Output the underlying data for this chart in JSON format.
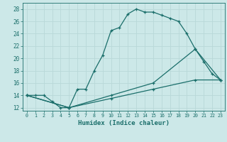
{
  "xlabel": "Humidex (Indice chaleur)",
  "background_color": "#cce8e8",
  "line_color": "#1a6e6a",
  "xlim": [
    -0.5,
    23.5
  ],
  "ylim": [
    11.5,
    29
  ],
  "yticks": [
    12,
    14,
    16,
    18,
    20,
    22,
    24,
    26,
    28
  ],
  "xticks": [
    0,
    1,
    2,
    3,
    4,
    5,
    6,
    7,
    8,
    9,
    10,
    11,
    12,
    13,
    14,
    15,
    16,
    17,
    18,
    19,
    20,
    21,
    22,
    23
  ],
  "line1_x": [
    0,
    1,
    2,
    3,
    4,
    5,
    6,
    7,
    8,
    9,
    10,
    11,
    12,
    13,
    14,
    15,
    16,
    17,
    18,
    19,
    20,
    21,
    22,
    23
  ],
  "line1_y": [
    14,
    14,
    14,
    13,
    12,
    12,
    15,
    15,
    18,
    20.5,
    24.5,
    25,
    27.2,
    28,
    27.5,
    27.5,
    27,
    26.5,
    26,
    24,
    21.5,
    19.5,
    17.5,
    16.5
  ],
  "line2_x": [
    0,
    5,
    10,
    15,
    20,
    23
  ],
  "line2_y": [
    14,
    12,
    14,
    16,
    21.5,
    16.5
  ],
  "line3_x": [
    0,
    5,
    10,
    15,
    20,
    23
  ],
  "line3_y": [
    14,
    12,
    13.5,
    15,
    16.5,
    16.5
  ],
  "grid_color": "#b8d8d8"
}
